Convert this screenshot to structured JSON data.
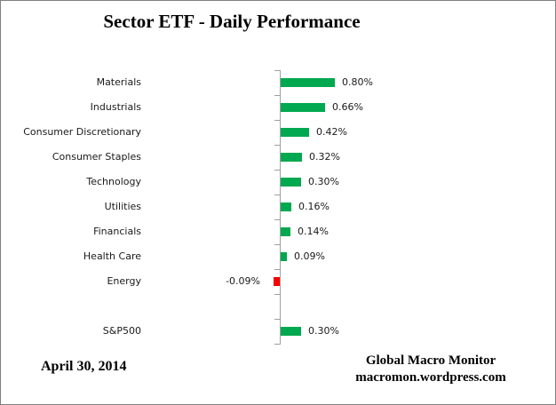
{
  "title": "Sector ETF - Daily Performance",
  "date_label": "April 30, 2014",
  "footer": {
    "line1": "Global Macro Monitor",
    "line2": "macromon.wordpress.com"
  },
  "colors": {
    "positive_bar": "#00a84f",
    "negative_bar": "#f50000",
    "axis": "#a0a0a0",
    "border": "#808080",
    "text": "#000000"
  },
  "chart_data": {
    "type": "bar",
    "orientation": "horizontal",
    "title": "Sector ETF - Daily Performance",
    "xlabel": "",
    "ylabel": "",
    "grid": false,
    "legend": false,
    "value_axis_labels_visible": false,
    "unit": "percent",
    "rows": [
      {
        "category": "Materials",
        "value": 0.8,
        "label": "0.80%"
      },
      {
        "category": "Industrials",
        "value": 0.66,
        "label": "0.66%"
      },
      {
        "category": "Consumer Discretionary",
        "value": 0.42,
        "label": "0.42%"
      },
      {
        "category": "Consumer Staples",
        "value": 0.32,
        "label": "0.32%"
      },
      {
        "category": "Technology",
        "value": 0.3,
        "label": "0.30%"
      },
      {
        "category": "Utilities",
        "value": 0.16,
        "label": "0.16%"
      },
      {
        "category": "Financials",
        "value": 0.14,
        "label": "0.14%"
      },
      {
        "category": "Health Care",
        "value": 0.09,
        "label": "0.09%"
      },
      {
        "category": "Energy",
        "value": -0.09,
        "label": "-0.09%"
      },
      {
        "category": "",
        "value": null,
        "label": ""
      },
      {
        "category": "S&P500",
        "value": 0.3,
        "label": "0.30%"
      }
    ]
  },
  "layout_hints": {
    "note": "values are % daily change; positive bars green, negative bars red"
  }
}
